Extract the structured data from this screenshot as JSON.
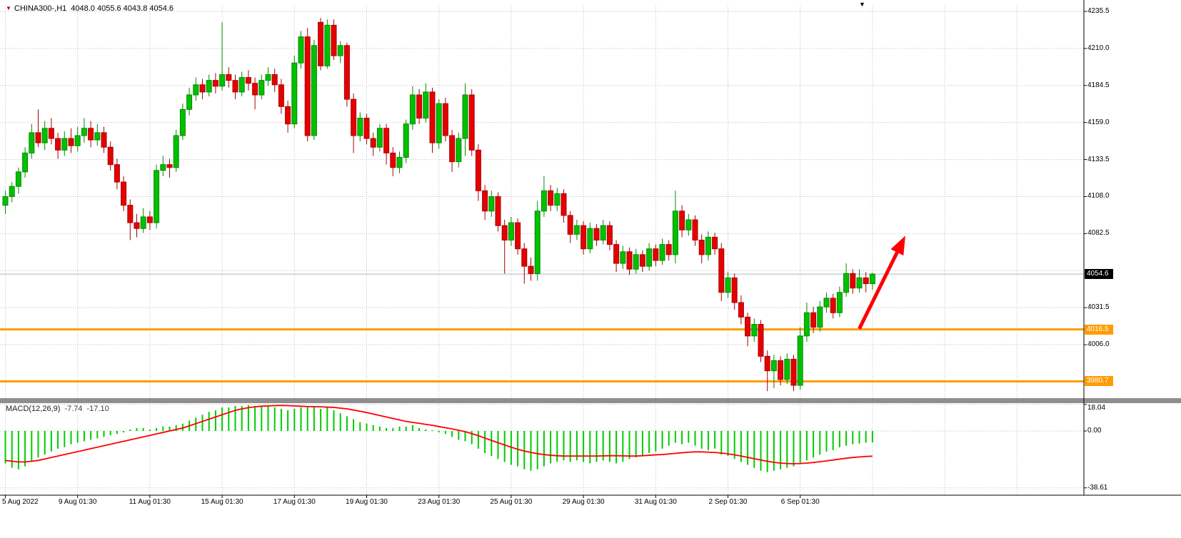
{
  "header": {
    "symbol": "CHINA300-,H1",
    "ohlc": "4048.0 4055.6 4043.8 4054.6"
  },
  "icons": {
    "symbol_dropdown": "▼",
    "scroll_marker": "▼"
  },
  "indicator": {
    "name": "MACD(12,26,9)",
    "main_value": "-7.74",
    "signal_value": "-17.10"
  },
  "price_axis": {
    "labels": [
      "4235.5",
      "4210.0",
      "4184.5",
      "4159.0",
      "4133.5",
      "4108.0",
      "4082.5",
      "4031.5",
      "4006.0"
    ],
    "current_badge": "4054.6",
    "level_badges": [
      "4016.5",
      "3980.7"
    ]
  },
  "macd_axis": {
    "labels": [
      "18.04",
      "0.00",
      "-38.61"
    ]
  },
  "time_axis": {
    "labels": [
      {
        "text": "5 Aug 2022",
        "bar": 0
      },
      {
        "text": "9 Aug 01:30",
        "bar": 11
      },
      {
        "text": "11 Aug 01:30",
        "bar": 22
      },
      {
        "text": "15 Aug 01:30",
        "bar": 33
      },
      {
        "text": "17 Aug 01:30",
        "bar": 44
      },
      {
        "text": "19 Aug 01:30",
        "bar": 55
      },
      {
        "text": "23 Aug 01:30",
        "bar": 66
      },
      {
        "text": "25 Aug 01:30",
        "bar": 77
      },
      {
        "text": "29 Aug 01:30",
        "bar": 88
      },
      {
        "text": "31 Aug 01:30",
        "bar": 99
      },
      {
        "text": "2 Sep 01:30",
        "bar": 110
      },
      {
        "text": "6 Sep 01:30",
        "bar": 121
      }
    ]
  },
  "colors": {
    "bull": "#00C000",
    "bull_border": "#008A00",
    "bear": "#E60000",
    "bear_border": "#A80000",
    "grid": "#BDBDBD",
    "level_line": "#FF9C00",
    "arrow": "#FF0000",
    "macd_histogram": "#00CC00",
    "macd_signal": "#FF0000",
    "current_price_line": "#A8B6C0",
    "badge_current_bg": "#000000"
  },
  "chart_data": {
    "type": "candlestick",
    "symbol": "CHINA300-",
    "timeframe": "H1",
    "title": "CHINA300-,H1",
    "last_bar_ohlc": {
      "open": 4048.0,
      "high": 4055.6,
      "low": 4043.8,
      "close": 4054.6
    },
    "current_price": 4054.6,
    "levels": [
      4016.5,
      3980.7
    ],
    "price_gridlines": [
      4235.5,
      4210.0,
      4184.5,
      4159.0,
      4133.5,
      4108.0,
      4082.5,
      4057.0,
      4031.5,
      4006.0,
      3980.5
    ],
    "annotation_arrow": {
      "from": {
        "bar": 130,
        "price": 4017
      },
      "to": {
        "bar": 137,
        "price": 4081
      }
    },
    "candles": [
      [
        4102,
        4112,
        4096,
        4108
      ],
      [
        4108,
        4118,
        4104,
        4115
      ],
      [
        4115,
        4128,
        4110,
        4125
      ],
      [
        4125,
        4142,
        4121,
        4138
      ],
      [
        4138,
        4158,
        4134,
        4152
      ],
      [
        4152,
        4168,
        4142,
        4145
      ],
      [
        4145,
        4160,
        4140,
        4155
      ],
      [
        4155,
        4162,
        4144,
        4148
      ],
      [
        4148,
        4152,
        4134,
        4140
      ],
      [
        4140,
        4153,
        4136,
        4148
      ],
      [
        4148,
        4155,
        4138,
        4143
      ],
      [
        4143,
        4156,
        4139,
        4150
      ],
      [
        4150,
        4162,
        4145,
        4155
      ],
      [
        4155,
        4160,
        4142,
        4147
      ],
      [
        4147,
        4158,
        4143,
        4152
      ],
      [
        4152,
        4156,
        4138,
        4142
      ],
      [
        4142,
        4146,
        4126,
        4130
      ],
      [
        4130,
        4134,
        4113,
        4118
      ],
      [
        4118,
        4122,
        4098,
        4102
      ],
      [
        4102,
        4106,
        4078,
        4090
      ],
      [
        4090,
        4096,
        4080,
        4086
      ],
      [
        4086,
        4100,
        4083,
        4094
      ],
      [
        4094,
        4098,
        4085,
        4090
      ],
      [
        4090,
        4130,
        4086,
        4126
      ],
      [
        4126,
        4136,
        4122,
        4130
      ],
      [
        4130,
        4134,
        4121,
        4128
      ],
      [
        4128,
        4154,
        4125,
        4150
      ],
      [
        4150,
        4172,
        4147,
        4168
      ],
      [
        4168,
        4183,
        4164,
        4178
      ],
      [
        4178,
        4190,
        4174,
        4185
      ],
      [
        4185,
        4189,
        4175,
        4180
      ],
      [
        4180,
        4192,
        4177,
        4188
      ],
      [
        4188,
        4193,
        4179,
        4184
      ],
      [
        4184,
        4228,
        4181,
        4192
      ],
      [
        4192,
        4197,
        4183,
        4188
      ],
      [
        4188,
        4192,
        4175,
        4180
      ],
      [
        4180,
        4194,
        4177,
        4190
      ],
      [
        4190,
        4195,
        4181,
        4186
      ],
      [
        4186,
        4190,
        4168,
        4178
      ],
      [
        4178,
        4192,
        4175,
        4188
      ],
      [
        4188,
        4197,
        4184,
        4192
      ],
      [
        4192,
        4196,
        4180,
        4185
      ],
      [
        4185,
        4189,
        4165,
        4170
      ],
      [
        4170,
        4174,
        4152,
        4158
      ],
      [
        4158,
        4205,
        4155,
        4200
      ],
      [
        4200,
        4222,
        4196,
        4218
      ],
      [
        4218,
        4224,
        4146,
        4150
      ],
      [
        4150,
        4216,
        4147,
        4212
      ],
      [
        4228,
        4231,
        4195,
        4198
      ],
      [
        4198,
        4230,
        4196,
        4226
      ],
      [
        4226,
        4230,
        4202,
        4205
      ],
      [
        4205,
        4215,
        4200,
        4212
      ],
      [
        4212,
        4214,
        4170,
        4175
      ],
      [
        4175,
        4179,
        4138,
        4150
      ],
      [
        4150,
        4166,
        4146,
        4162
      ],
      [
        4162,
        4165,
        4144,
        4148
      ],
      [
        4148,
        4152,
        4136,
        4142
      ],
      [
        4142,
        4158,
        4139,
        4155
      ],
      [
        4155,
        4158,
        4130,
        4138
      ],
      [
        4138,
        4142,
        4122,
        4128
      ],
      [
        4128,
        4139,
        4124,
        4135
      ],
      [
        4135,
        4161,
        4131,
        4158
      ],
      [
        4158,
        4184,
        4154,
        4178
      ],
      [
        4178,
        4182,
        4158,
        4162
      ],
      [
        4162,
        4186,
        4159,
        4180
      ],
      [
        4180,
        4183,
        4138,
        4145
      ],
      [
        4145,
        4175,
        4141,
        4172
      ],
      [
        4172,
        4176,
        4146,
        4150
      ],
      [
        4150,
        4154,
        4125,
        4132
      ],
      [
        4132,
        4152,
        4128,
        4148
      ],
      [
        4148,
        4186,
        4136,
        4178
      ],
      [
        4178,
        4182,
        4136,
        4140
      ],
      [
        4140,
        4144,
        4105,
        4112
      ],
      [
        4112,
        4116,
        4092,
        4098
      ],
      [
        4098,
        4112,
        4094,
        4108
      ],
      [
        4108,
        4111,
        4084,
        4088
      ],
      [
        4088,
        4092,
        4055,
        4078
      ],
      [
        4078,
        4094,
        4074,
        4090
      ],
      [
        4090,
        4093,
        4068,
        4072
      ],
      [
        4072,
        4076,
        4048,
        4060
      ],
      [
        4060,
        4066,
        4050,
        4055
      ],
      [
        4055,
        4105,
        4050,
        4098
      ],
      [
        4098,
        4122,
        4094,
        4112
      ],
      [
        4112,
        4116,
        4098,
        4102
      ],
      [
        4102,
        4114,
        4098,
        4110
      ],
      [
        4110,
        4113,
        4090,
        4095
      ],
      [
        4095,
        4098,
        4076,
        4082
      ],
      [
        4082,
        4092,
        4078,
        4088
      ],
      [
        4088,
        4091,
        4068,
        4072
      ],
      [
        4072,
        4090,
        4069,
        4086
      ],
      [
        4086,
        4089,
        4074,
        4078
      ],
      [
        4078,
        4092,
        4075,
        4088
      ],
      [
        4088,
        4091,
        4071,
        4075
      ],
      [
        4075,
        4078,
        4056,
        4062
      ],
      [
        4062,
        4074,
        4058,
        4070
      ],
      [
        4070,
        4073,
        4054,
        4058
      ],
      [
        4058,
        4072,
        4055,
        4068
      ],
      [
        4068,
        4071,
        4056,
        4060
      ],
      [
        4060,
        4076,
        4057,
        4072
      ],
      [
        4072,
        4075,
        4060,
        4064
      ],
      [
        4064,
        4079,
        4061,
        4075
      ],
      [
        4075,
        4078,
        4064,
        4068
      ],
      [
        4068,
        4112,
        4062,
        4098
      ],
      [
        4098,
        4102,
        4080,
        4085
      ],
      [
        4085,
        4096,
        4081,
        4092
      ],
      [
        4092,
        4095,
        4074,
        4078
      ],
      [
        4078,
        4082,
        4062,
        4068
      ],
      [
        4068,
        4084,
        4064,
        4080
      ],
      [
        4080,
        4083,
        4068,
        4072
      ],
      [
        4072,
        4076,
        4036,
        4042
      ],
      [
        4042,
        4056,
        4038,
        4052
      ],
      [
        4052,
        4055,
        4030,
        4035
      ],
      [
        4035,
        4040,
        4020,
        4025
      ],
      [
        4025,
        4028,
        4005,
        4012
      ],
      [
        4012,
        4024,
        4008,
        4020
      ],
      [
        4020,
        4023,
        3994,
        3998
      ],
      [
        3998,
        4002,
        3974,
        3988
      ],
      [
        3988,
        3999,
        3976,
        3995
      ],
      [
        3995,
        3998,
        3978,
        3982
      ],
      [
        3982,
        4000,
        3979,
        3996
      ],
      [
        3996,
        3999,
        3974,
        3978
      ],
      [
        3978,
        4018,
        3975,
        4012
      ],
      [
        4012,
        4035,
        4008,
        4028
      ],
      [
        4028,
        4032,
        4014,
        4018
      ],
      [
        4018,
        4036,
        4015,
        4032
      ],
      [
        4032,
        4042,
        4028,
        4038
      ],
      [
        4038,
        4041,
        4024,
        4028
      ],
      [
        4028,
        4046,
        4025,
        4042
      ],
      [
        4042,
        4062,
        4039,
        4055
      ],
      [
        4055,
        4058,
        4041,
        4045
      ],
      [
        4045,
        4058,
        4042,
        4052
      ],
      [
        4052,
        4056,
        4042,
        4048
      ],
      [
        4048,
        4055.6,
        4043.8,
        4054.6
      ]
    ],
    "macd": {
      "params": "12,26,9",
      "gridlines": [
        18.04,
        0,
        -38.61
      ],
      "histogram": [
        -22,
        -25,
        -26,
        -24,
        -21,
        -18,
        -16,
        -14,
        -12,
        -11,
        -9,
        -8,
        -7,
        -6,
        -5,
        -4,
        -3,
        -2,
        -1,
        1,
        2,
        2,
        1,
        2,
        3,
        3,
        4,
        5,
        7,
        9,
        11,
        13,
        14,
        16,
        16,
        17,
        17,
        17.5,
        17,
        16.5,
        17,
        16,
        15,
        14,
        15,
        16,
        17,
        16,
        15,
        16,
        14,
        12,
        10,
        8,
        6,
        5,
        4,
        3,
        2,
        2,
        3,
        3,
        4,
        2,
        1,
        0.5,
        -1,
        -2,
        -4,
        -6,
        -7,
        -9,
        -12,
        -15,
        -17,
        -19,
        -21,
        -23,
        -24,
        -26,
        -27,
        -26,
        -24,
        -22,
        -21,
        -20,
        -21,
        -20,
        -21,
        -22,
        -21,
        -20,
        -21,
        -22,
        -21,
        -19,
        -18,
        -17,
        -15,
        -14,
        -12,
        -10,
        -8,
        -9,
        -8,
        -10,
        -12,
        -13,
        -12,
        -16,
        -17,
        -19,
        -21,
        -23,
        -25,
        -27,
        -28,
        -27,
        -26,
        -25,
        -24,
        -22,
        -20,
        -18,
        -16,
        -14,
        -13,
        -11,
        -10,
        -9,
        -8.5,
        -8,
        -7.74
      ],
      "signal": [
        -20,
        -20.5,
        -21,
        -21,
        -20.5,
        -20,
        -19,
        -18,
        -17,
        -16,
        -15,
        -14,
        -13,
        -12,
        -11,
        -10,
        -9,
        -8,
        -7,
        -6,
        -5,
        -4,
        -3,
        -2,
        -1,
        0,
        1,
        2,
        3.5,
        5,
        6.5,
        8,
        9.5,
        11,
        12.5,
        14,
        15,
        15.8,
        16.4,
        16.8,
        17,
        17.2,
        17.3,
        17.2,
        17,
        16.8,
        16.6,
        16.5,
        16.4,
        16.2,
        16,
        15.5,
        15,
        14.2,
        13.4,
        12.5,
        11.5,
        10.5,
        9.5,
        8.5,
        7.5,
        6.5,
        5.8,
        5.2,
        4.5,
        3.8,
        3,
        2.2,
        1.4,
        0.5,
        -0.5,
        -1.8,
        -3.2,
        -4.8,
        -6.4,
        -8,
        -9.5,
        -11,
        -12.4,
        -13.6,
        -14.6,
        -15.4,
        -16,
        -16.5,
        -16.8,
        -17,
        -17,
        -17,
        -17,
        -17,
        -17,
        -16.9,
        -16.8,
        -16.8,
        -16.9,
        -17,
        -17,
        -16.8,
        -16.5,
        -16.2,
        -16,
        -15.6,
        -15.2,
        -14.8,
        -14.4,
        -14.2,
        -14.2,
        -14.4,
        -14.6,
        -15,
        -15.5,
        -16.2,
        -17,
        -17.9,
        -18.8,
        -19.7,
        -20.6,
        -21.3,
        -21.8,
        -22.1,
        -22.2,
        -22.1,
        -21.8,
        -21.4,
        -20.9,
        -20.3,
        -19.7,
        -19.1,
        -18.5,
        -18,
        -17.6,
        -17.3,
        -17.1
      ]
    }
  }
}
